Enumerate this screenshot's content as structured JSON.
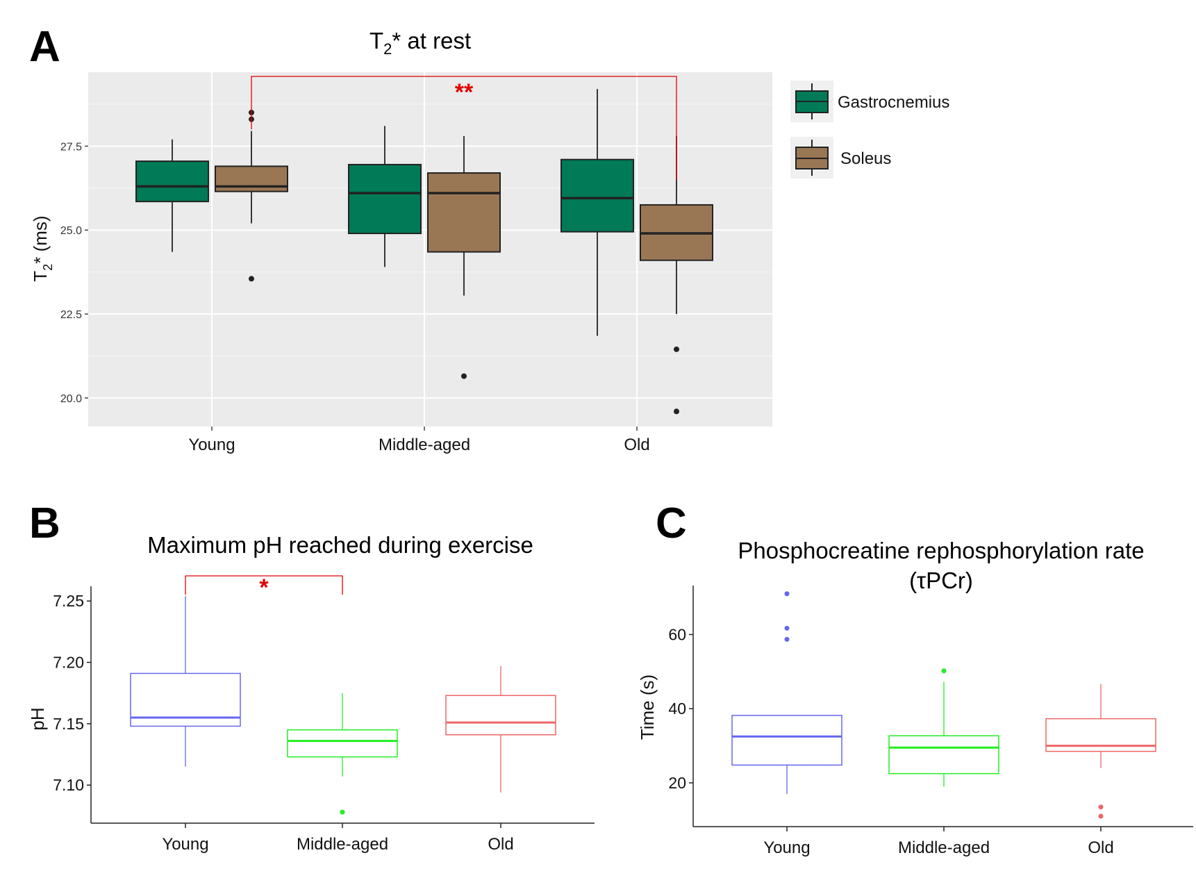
{
  "figure": {
    "panels": [
      {
        "letter": "A"
      },
      {
        "letter": "B"
      },
      {
        "letter": "C"
      }
    ]
  },
  "chart_data": [
    {
      "panel": "A",
      "type": "boxplot",
      "title": "T2* at rest",
      "title_main": "T",
      "title_sub": "2",
      "title_rest": "* at rest",
      "ylabel": "T2* (ms)",
      "ylabel_main": "T",
      "ylabel_sub": "2",
      "ylabel_rest": "* (ms)",
      "xlabel": "",
      "ylim": [
        19.15,
        29.7
      ],
      "yticks": [
        20.0,
        22.5,
        25.0,
        27.5
      ],
      "ytick_labels": [
        "20.0",
        "22.5",
        "25.0",
        "27.5"
      ],
      "categories": [
        "Young",
        "Middle-aged",
        "Old"
      ],
      "background": "#ebebeb",
      "grid": true,
      "legend": {
        "position": "right",
        "entries": [
          "Gastrocnemius",
          "Soleus"
        ]
      },
      "series": [
        {
          "name": "Gastrocnemius",
          "fill": "#007a57",
          "boxes": [
            {
              "q1": 25.85,
              "median": 26.3,
              "q3": 27.05,
              "whislo": 24.35,
              "whishi": 27.7,
              "outliers": []
            },
            {
              "q1": 24.9,
              "median": 26.1,
              "q3": 26.95,
              "whislo": 23.9,
              "whishi": 28.1,
              "outliers": []
            },
            {
              "q1": 24.95,
              "median": 25.95,
              "q3": 27.1,
              "whislo": 21.85,
              "whishi": 29.2,
              "outliers": []
            }
          ]
        },
        {
          "name": "Soleus",
          "fill": "#9a7754",
          "boxes": [
            {
              "q1": 26.15,
              "median": 26.3,
              "q3": 26.9,
              "whislo": 25.2,
              "whishi": 27.95,
              "outliers": [
                28.5,
                28.3,
                23.55
              ]
            },
            {
              "q1": 24.35,
              "median": 26.1,
              "q3": 26.7,
              "whislo": 23.05,
              "whishi": 27.8,
              "outliers": [
                20.65
              ]
            },
            {
              "q1": 24.1,
              "median": 24.9,
              "q3": 25.75,
              "whislo": 22.5,
              "whishi": 27.8,
              "outliers": [
                21.45,
                19.6
              ]
            }
          ]
        }
      ],
      "significance": [
        {
          "from": "Young Soleus",
          "to": "Old Soleus",
          "label": "**",
          "color": "#e00000"
        }
      ]
    },
    {
      "panel": "B",
      "type": "boxplot",
      "title": "Maximum pH reached during exercise",
      "ylabel": "pH",
      "xlabel": "",
      "ylim": [
        7.069,
        7.262
      ],
      "yticks": [
        7.1,
        7.15,
        7.2,
        7.25
      ],
      "ytick_labels": [
        "7.10",
        "7.15",
        "7.20",
        "7.25"
      ],
      "categories": [
        "Young",
        "Middle-aged",
        "Old"
      ],
      "colors": [
        "#6666ee",
        "#22ee22",
        "#ee6666"
      ],
      "boxes": [
        {
          "q1": 7.148,
          "median": 7.155,
          "q3": 7.191,
          "whislo": 7.115,
          "whishi": 7.254,
          "outliers": []
        },
        {
          "q1": 7.123,
          "median": 7.136,
          "q3": 7.145,
          "whislo": 7.107,
          "whishi": 7.175,
          "outliers": [
            7.078
          ]
        },
        {
          "q1": 7.141,
          "median": 7.151,
          "q3": 7.173,
          "whislo": 7.094,
          "whishi": 7.197,
          "outliers": []
        }
      ],
      "significance": [
        {
          "from": "Young",
          "to": "Middle-aged",
          "label": "*",
          "color": "#e00000"
        }
      ]
    },
    {
      "panel": "C",
      "type": "boxplot",
      "title": "Phosphocreatine rephosphorylation rate",
      "title_line2": "(τPCr)",
      "ylabel": "Time (s)",
      "xlabel": "",
      "ylim": [
        8.2,
        73.2
      ],
      "yticks": [
        20,
        40,
        60
      ],
      "ytick_labels": [
        "20",
        "40",
        "60"
      ],
      "categories": [
        "Young",
        "Middle-aged",
        "Old"
      ],
      "colors": [
        "#6666ee",
        "#22ee22",
        "#ee6666"
      ],
      "boxes": [
        {
          "q1": 24.8,
          "median": 32.5,
          "q3": 38.2,
          "whislo": 17.0,
          "whishi": 38.2,
          "outliers": [
            71.0,
            61.7,
            58.7
          ]
        },
        {
          "q1": 22.5,
          "median": 29.5,
          "q3": 32.7,
          "whislo": 19.0,
          "whishi": 47.2,
          "outliers": [
            50.2
          ]
        },
        {
          "q1": 28.5,
          "median": 30.0,
          "q3": 37.3,
          "whislo": 24.0,
          "whishi": 46.7,
          "outliers": [
            13.5,
            11.0
          ]
        }
      ]
    }
  ]
}
